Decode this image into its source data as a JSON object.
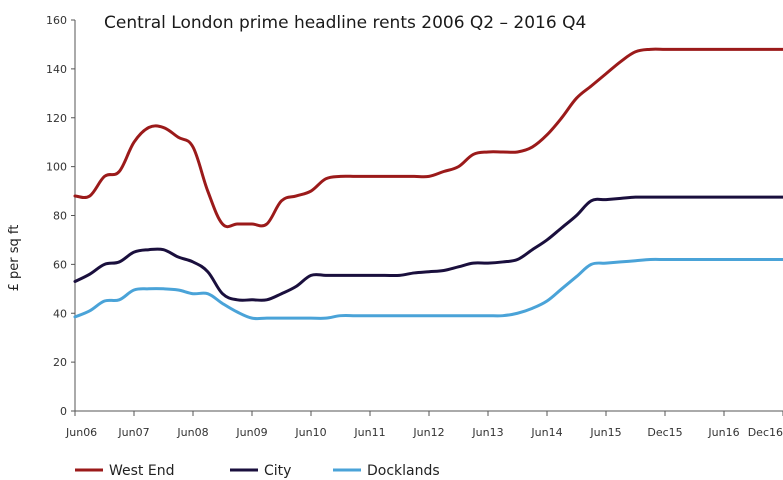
{
  "chart_data": {
    "type": "line",
    "title": "Central London prime headline rents 2006 Q2 – 2016 Q4",
    "xlabel": "",
    "ylabel": "£ per sq ft",
    "ylim": [
      0,
      160
    ],
    "yticks": [
      0,
      20,
      40,
      60,
      80,
      100,
      120,
      140,
      160
    ],
    "xticks": [
      "Jun06",
      "Jun07",
      "Jun08",
      "Jun09",
      "Jun10",
      "Jun11",
      "Jun12",
      "Jun13",
      "Jun14",
      "Jun15",
      "Dec15",
      "Jun16",
      "Dec16"
    ],
    "grid": false,
    "legend_position": "bottom",
    "x": [
      0,
      0.25,
      0.5,
      0.75,
      1.0,
      1.25,
      1.5,
      1.75,
      2.0,
      2.25,
      2.5,
      2.75,
      3.0,
      3.25,
      3.5,
      3.75,
      4.0,
      4.25,
      4.5,
      4.75,
      5.0,
      5.25,
      5.5,
      5.75,
      6.0,
      6.25,
      6.5,
      6.75,
      7.0,
      7.25,
      7.5,
      7.75,
      8.0,
      8.25,
      8.5,
      8.75,
      9.0,
      9.25,
      9.5,
      9.75,
      10.0,
      10.25,
      10.5,
      10.75,
      11.0,
      11.25,
      11.5,
      11.75,
      12.0
    ],
    "series": [
      {
        "name": "West End",
        "color": "#9b1a1a",
        "values": [
          88,
          88,
          96,
          98,
          110,
          116,
          116,
          112,
          108,
          90,
          76.5,
          76.5,
          76.5,
          76.5,
          86,
          88,
          90,
          95,
          96,
          96,
          96,
          96,
          96,
          96,
          96,
          98,
          100,
          105,
          106,
          106,
          106,
          108,
          113,
          120,
          128,
          133,
          138,
          143,
          147,
          148,
          148,
          148,
          148,
          148,
          148,
          148,
          148,
          148,
          148
        ]
      },
      {
        "name": "City",
        "color": "#1a0f3d",
        "values": [
          53,
          56,
          60,
          61,
          65,
          66,
          66,
          63,
          61,
          57,
          48,
          45.5,
          45.5,
          45.5,
          48,
          51,
          55.5,
          55.5,
          55.5,
          55.5,
          55.5,
          55.5,
          55.5,
          56.5,
          57,
          57.5,
          59,
          60.5,
          60.5,
          61,
          62,
          66,
          70,
          75,
          80,
          86,
          86.5,
          87,
          87.5,
          87.5,
          87.5,
          87.5,
          87.5,
          87.5,
          87.5,
          87.5,
          87.5,
          87.5,
          87.5
        ]
      },
      {
        "name": "Docklands",
        "color": "#4aa3d8",
        "values": [
          38.5,
          41,
          45,
          45.5,
          49.5,
          50,
          50,
          49.5,
          48,
          48,
          44,
          40.5,
          38,
          38,
          38,
          38,
          38,
          38,
          39,
          39,
          39,
          39,
          39,
          39,
          39,
          39,
          39,
          39,
          39,
          39,
          40,
          42,
          45,
          50,
          55,
          60,
          60.5,
          61,
          61.5,
          62,
          62,
          62,
          62,
          62,
          62,
          62,
          62,
          62,
          62
        ]
      }
    ]
  }
}
